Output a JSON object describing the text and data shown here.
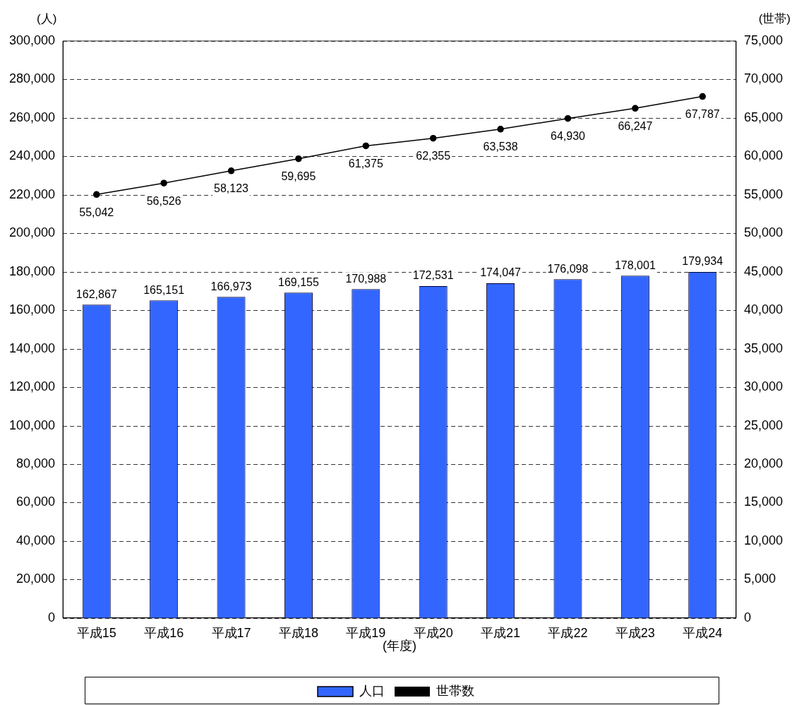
{
  "chart_data": {
    "type": "bar",
    "ylabel": "(人)",
    "y2label": "(世帯)",
    "xlabel": "(年度)",
    "categories": [
      "平成15",
      "平成16",
      "平成17",
      "平成18",
      "平成19",
      "平成20",
      "平成21",
      "平成22",
      "平成23",
      "平成24"
    ],
    "series": [
      {
        "name": "人口",
        "color": "#3366ff",
        "values": [
          162867,
          165151,
          166973,
          169155,
          170988,
          172531,
          174047,
          176098,
          178001,
          179934
        ],
        "value_labels": [
          "162,867",
          "165,151",
          "166,973",
          "169,155",
          "170,988",
          "172,531",
          "174,047",
          "176,098",
          "178,001",
          "179,934"
        ]
      },
      {
        "name": "世帯数",
        "type": "line",
        "axis": "y2",
        "color": "#000000",
        "values": [
          55042,
          56526,
          58123,
          59695,
          61375,
          62355,
          63538,
          64930,
          66247,
          67787
        ],
        "value_labels": [
          "55,042",
          "56,526",
          "58,123",
          "59,695",
          "61,375",
          "62,355",
          "63,538",
          "64,930",
          "66,247",
          "67,787"
        ]
      }
    ],
    "ylim": [
      0,
      300000
    ],
    "yticks": [
      0,
      {
        "value": 20000,
        "label": "20,000"
      },
      {
        "value": 40000,
        "label": "40,000"
      },
      {
        "value": 60000,
        "label": "60,000"
      },
      {
        "value": 80000,
        "label": "80,000"
      },
      {
        "value": 100000,
        "label": "100,000"
      },
      {
        "value": 120000,
        "label": "120,000"
      },
      {
        "value": 140000,
        "label": "140,000"
      },
      {
        "value": 160000,
        "label": "160,000"
      },
      {
        "value": 180000,
        "label": "180,000"
      },
      {
        "value": 200000,
        "label": "200,000"
      },
      {
        "value": 220000,
        "label": "220,000"
      },
      {
        "value": 240000,
        "label": "240,000"
      },
      {
        "value": 260000,
        "label": "260,000"
      },
      {
        "value": 280000,
        "label": "280,000"
      },
      {
        "value": 300000,
        "label": "300,000"
      }
    ],
    "y2lim": [
      0,
      75000
    ],
    "y2ticks": [
      0,
      {
        "value": 5000,
        "label": "5,000"
      },
      {
        "value": 10000,
        "label": "10,000"
      },
      {
        "value": 15000,
        "label": "15,000"
      },
      {
        "value": 20000,
        "label": "20,000"
      },
      {
        "value": 25000,
        "label": "25,000"
      },
      {
        "value": 30000,
        "label": "30,000"
      },
      {
        "value": 35000,
        "label": "35,000"
      },
      {
        "value": 40000,
        "label": "40,000"
      },
      {
        "value": 45000,
        "label": "45,000"
      },
      {
        "value": 50000,
        "label": "50,000"
      },
      {
        "value": 55000,
        "label": "55,000"
      },
      {
        "value": 60000,
        "label": "60,000"
      },
      {
        "value": 65000,
        "label": "65,000"
      },
      {
        "value": 70000,
        "label": "70,000"
      },
      {
        "value": 75000,
        "label": "75,000"
      }
    ],
    "grid": "y",
    "legend": "bottom",
    "marker": "circle",
    "line_style": "solid"
  }
}
